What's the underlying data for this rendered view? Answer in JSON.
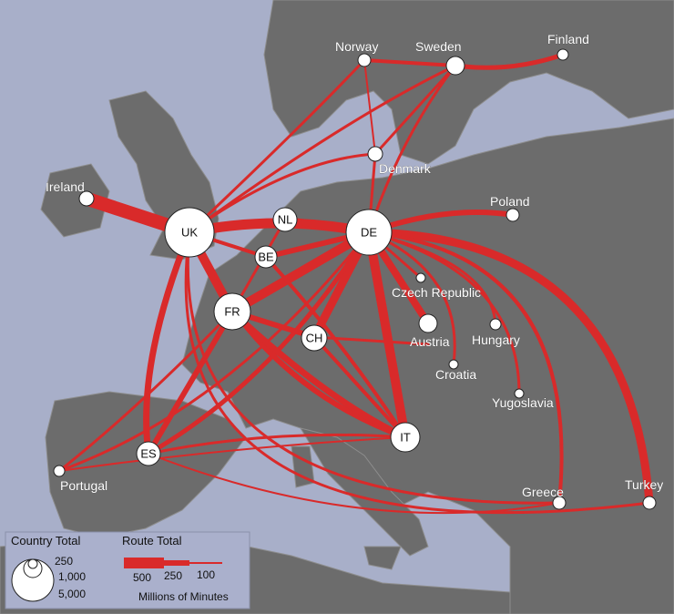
{
  "map": {
    "countries": {
      "UK": "UK",
      "DE": "DE",
      "FR": "FR",
      "IT": "IT",
      "NL": "NL",
      "BE": "BE",
      "CH": "CH",
      "ES": "ES",
      "Ireland": "Ireland",
      "Norway": "Norway",
      "Sweden": "Sweden",
      "Finland": "Finland",
      "Denmark": "Denmark",
      "Poland": "Poland",
      "CzechRepublic": "Czech Republic",
      "Austria": "Austria",
      "Hungary": "Hungary",
      "Croatia": "Croatia",
      "Yugoslavia": "Yugoslavia",
      "Greece": "Greece",
      "Turkey": "Turkey",
      "Portugal": "Portugal"
    }
  },
  "legend": {
    "country_total_title": "Country Total",
    "country_sizes": [
      "250",
      "1,000",
      "5,000"
    ],
    "route_total_title": "Route Total",
    "route_sizes": [
      "500",
      "250",
      "100"
    ],
    "units": "Millions of Minutes"
  },
  "colors": {
    "sea": "#a8afc9",
    "land": "#6c6c6c",
    "route": "#d92a2a",
    "node": "#ffffff"
  }
}
